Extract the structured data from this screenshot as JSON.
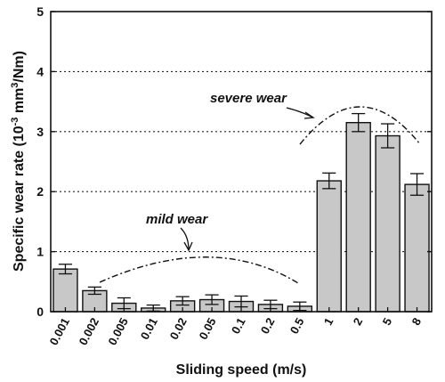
{
  "chart_data": {
    "type": "bar",
    "title": "",
    "categories": [
      "0.001",
      "0.002",
      "0.005",
      "0.01",
      "0.02",
      "0.05",
      "0.1",
      "0.2",
      "0.5",
      "1",
      "2",
      "5",
      "8"
    ],
    "values": [
      0.71,
      0.35,
      0.14,
      0.06,
      0.18,
      0.2,
      0.17,
      0.12,
      0.09,
      2.18,
      3.15,
      2.93,
      2.12
    ],
    "errors": [
      0.08,
      0.06,
      0.09,
      0.05,
      0.07,
      0.08,
      0.09,
      0.07,
      0.07,
      0.13,
      0.15,
      0.2,
      0.18
    ],
    "xlabel": "Sliding speed (m/s)",
    "ylabel_main": "Specific wear rate (10",
    "ylabel_exp1": "-3",
    "ylabel_mid": " mm",
    "ylabel_exp2": "3",
    "ylabel_end": "/Nm)",
    "ylim": [
      0,
      5
    ],
    "yticks": [
      "0",
      "1",
      "2",
      "3",
      "4",
      "5"
    ],
    "grid": "horizontal dotted",
    "bar_color": "#c8c8c8",
    "annotations": {
      "mild": "mild wear",
      "severe": "severe wear"
    }
  }
}
